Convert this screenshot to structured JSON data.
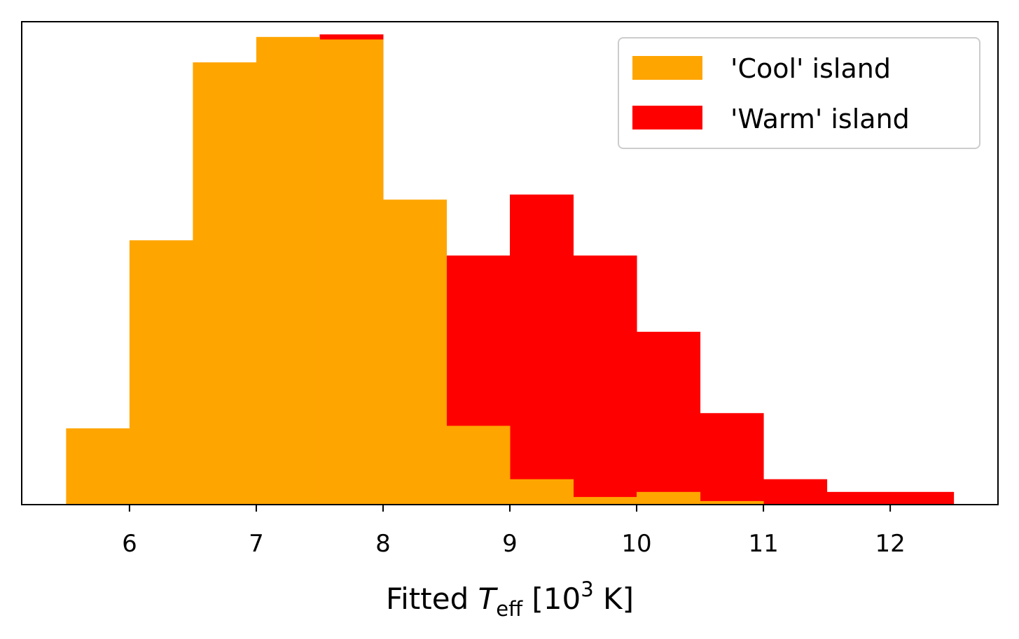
{
  "chart_data": {
    "type": "bar",
    "histogram": true,
    "bin_edges": [
      5.5,
      6.0,
      6.5,
      7.0,
      7.5,
      8.0,
      8.5,
      9.0,
      9.5,
      10.0,
      10.5,
      11.0,
      11.5,
      12.0,
      12.5
    ],
    "series": [
      {
        "name": "'Warm' island",
        "color": "#ff0000",
        "values": [
          0,
          0,
          0,
          0,
          0.925,
          0.54,
          0.49,
          0.61,
          0.49,
          0.34,
          0.18,
          0.05,
          0.025,
          0.025
        ]
      },
      {
        "name": "'Cool' island",
        "color": "#ffa500",
        "values": [
          0.15,
          0.52,
          0.87,
          0.92,
          0.915,
          0.6,
          0.155,
          0.05,
          0.015,
          0.025,
          0.007,
          0,
          0,
          0
        ]
      }
    ],
    "draw_order": [
      "'Warm' island",
      "'Cool' island"
    ],
    "x_ticks": [
      "6",
      "7",
      "8",
      "9",
      "10",
      "11",
      "12"
    ],
    "x_tick_values": [
      6,
      7,
      8,
      9,
      10,
      11,
      12
    ],
    "xlim": [
      5.15,
      12.85
    ],
    "ylim": [
      0,
      0.95
    ],
    "y_ticks_visible": false,
    "xlabel": {
      "prefix": "Fitted ",
      "symbol": "T",
      "subscript": "eff",
      "middle": " [10",
      "superscript": "3",
      "suffix": " K]"
    },
    "legend": {
      "placement": "top-right",
      "entries": [
        {
          "label": "'Cool' island",
          "color": "#ffa500"
        },
        {
          "label": "'Warm' island",
          "color": "#ff0000"
        }
      ]
    },
    "grid": false
  }
}
